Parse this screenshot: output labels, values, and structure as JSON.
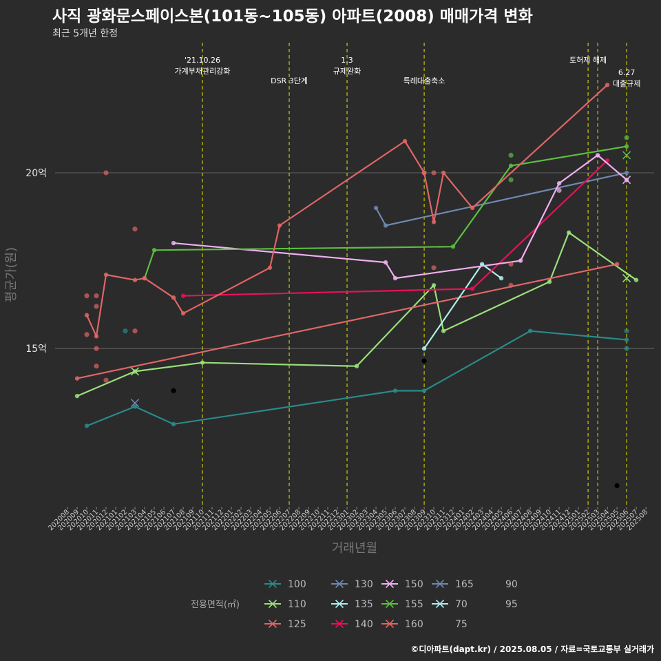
{
  "title": "사직 광화문스페이스본(101동~105동) 아파트(2008) 매매가격 변화",
  "subtitle": "최근 5개년 한정",
  "caption": "©디아파트(dapt.kr) / 2025.08.05 / 자료=국토교통부 실거래가",
  "chart_data": {
    "type": "line",
    "xlabel": "거래년월",
    "ylabel": "평균가(원)",
    "ylim": [
      10.5,
      23.7
    ],
    "yticks": [
      {
        "value": 15,
        "label": "15억"
      },
      {
        "value": 20,
        "label": "20억"
      }
    ],
    "x_start": "2020-08",
    "x_end": "2025-08",
    "grid": true,
    "background": "#2b2b2b",
    "event_lines": [
      {
        "date": "2021-10",
        "label": "'21.10.26\n가계부채관리강화",
        "color": "#e8e800"
      },
      {
        "date": "2022-07",
        "label": "DSR 3단계",
        "color": "#e8e800"
      },
      {
        "date": "2023-01",
        "label": "1.3\n규제완화",
        "color": "#e8e800"
      },
      {
        "date": "2023-09",
        "label": "특례대출축소",
        "color": "#e8e800"
      },
      {
        "date": "2025-02",
        "label": "토허제 해제",
        "color": "#e8e800"
      },
      {
        "date": "2025-03",
        "label": "",
        "color": "#e8e800"
      },
      {
        "date": "2025-06",
        "label": "6.27\n대출규제",
        "color": "#e8e800"
      }
    ],
    "series": [
      {
        "name": "100",
        "color": "#2a8a8a",
        "line": [
          [
            "2020-10",
            12.8
          ],
          [
            "2021-03",
            13.35
          ],
          [
            "2021-07",
            12.85
          ],
          [
            "2023-06",
            13.8
          ],
          [
            "2023-09",
            13.8
          ],
          [
            "2024-08",
            15.5
          ],
          [
            "2025-06",
            15.25
          ]
        ],
        "points": [
          [
            "2021-02",
            15.5
          ],
          [
            "2025-06",
            15.5
          ],
          [
            "2025-06",
            15.0
          ]
        ],
        "crosses": []
      },
      {
        "name": "110",
        "color": "#99e07a",
        "line": [
          [
            "2020-09",
            13.65
          ],
          [
            "2021-03",
            14.35
          ],
          [
            "2021-10",
            14.6
          ],
          [
            "2023-02",
            14.5
          ],
          [
            "2023-10",
            16.8
          ],
          [
            "2023-11",
            15.5
          ],
          [
            "2024-10",
            16.9
          ],
          [
            "2024-12",
            18.3
          ],
          [
            "2025-07",
            16.95
          ]
        ],
        "points": [],
        "crosses": [
          [
            "2021-03",
            14.35
          ],
          [
            "2025-06",
            17.0
          ]
        ]
      },
      {
        "name": "125",
        "color": "#e06666",
        "line": [
          [
            "2020-09",
            14.15
          ],
          [
            "2025-05",
            17.4
          ]
        ],
        "points": [
          [
            "2021-03",
            15.5
          ]
        ],
        "crosses": []
      },
      {
        "name": "130",
        "color": "#6f88b0",
        "line": [
          [
            "2023-04",
            19.0
          ],
          [
            "2023-05",
            18.5
          ],
          [
            "2025-06",
            20.0
          ]
        ],
        "points": [],
        "crosses": []
      },
      {
        "name": "135",
        "color": "#aeeeee",
        "line": [
          [
            "2023-09",
            15.0
          ],
          [
            "2024-03",
            17.4
          ],
          [
            "2024-05",
            17.0
          ]
        ],
        "points": [],
        "crosses": []
      },
      {
        "name": "140",
        "color": "#e8115a",
        "line": [
          [
            "2021-08",
            16.5
          ],
          [
            "2024-02",
            16.7
          ],
          [
            "2025-04",
            20.35
          ]
        ],
        "points": [],
        "crosses": []
      },
      {
        "name": "150",
        "color": "#f0b0f0",
        "line": [
          [
            "2021-07",
            18.0
          ],
          [
            "2023-05",
            17.45
          ],
          [
            "2023-06",
            17.0
          ],
          [
            "2024-07",
            17.5
          ],
          [
            "2024-11",
            19.7
          ],
          [
            "2025-03",
            20.5
          ],
          [
            "2025-06",
            19.8
          ]
        ],
        "points": [
          [
            "2024-11",
            19.5
          ]
        ],
        "crosses": [
          [
            "2025-06",
            19.8
          ]
        ]
      },
      {
        "name": "155",
        "color": "#5bbf3f",
        "line": [
          [
            "2021-04",
            17.0
          ],
          [
            "2021-05",
            17.8
          ],
          [
            "2023-12",
            17.9
          ],
          [
            "2024-06",
            20.2
          ],
          [
            "2025-06",
            20.75
          ]
        ],
        "points": [
          [
            "2024-06",
            20.5
          ],
          [
            "2024-06",
            19.8
          ],
          [
            "2025-06",
            21.0
          ]
        ],
        "crosses": [
          [
            "2025-06",
            20.5
          ]
        ]
      },
      {
        "name": "160",
        "color": "#e06666",
        "line": [
          [
            "2020-10",
            15.95
          ],
          [
            "2020-11",
            15.35
          ],
          [
            "2020-12",
            17.1
          ],
          [
            "2021-03",
            16.95
          ],
          [
            "2021-04",
            17.0
          ],
          [
            "2021-07",
            16.45
          ],
          [
            "2021-08",
            16.0
          ],
          [
            "2022-05",
            17.3
          ],
          [
            "2022-06",
            18.5
          ],
          [
            "2023-07",
            20.9
          ],
          [
            "2023-09",
            20.0
          ],
          [
            "2023-10",
            18.6
          ],
          [
            "2023-11",
            20.0
          ],
          [
            "2024-02",
            19.0
          ],
          [
            "2025-04",
            22.5
          ]
        ],
        "points": [
          [
            "2020-10",
            16.5
          ],
          [
            "2020-10",
            15.4
          ],
          [
            "2020-11",
            16.5
          ],
          [
            "2020-11",
            16.2
          ],
          [
            "2020-11",
            15.0
          ],
          [
            "2020-11",
            14.5
          ],
          [
            "2020-12",
            14.1
          ],
          [
            "2020-12",
            20.0
          ],
          [
            "2021-03",
            18.4
          ],
          [
            "2023-09",
            20.0
          ],
          [
            "2023-10",
            17.3
          ],
          [
            "2023-10",
            20.0
          ],
          [
            "2024-06",
            16.8
          ],
          [
            "2024-06",
            17.4
          ]
        ],
        "crosses": []
      },
      {
        "name": "165",
        "color": "#6f88b0",
        "line": [],
        "points": [],
        "crosses": [
          [
            "2021-03",
            13.45
          ]
        ]
      },
      {
        "name": "70",
        "color": "#aeeeee",
        "line": [],
        "points": [],
        "crosses": []
      },
      {
        "name": "75",
        "color": "#000000",
        "line": [],
        "points": [
          [
            "2021-07",
            13.8
          ],
          [
            "2023-09",
            14.65
          ],
          [
            "2025-05",
            11.1
          ]
        ],
        "crosses": []
      },
      {
        "name": "90",
        "color": "#000000",
        "line": [],
        "points": [],
        "crosses": []
      },
      {
        "name": "95",
        "color": "#000000",
        "line": [],
        "points": [],
        "crosses": []
      }
    ],
    "legend": {
      "title": "전용면적(㎡)",
      "placement": "bottom",
      "entries": [
        {
          "name": "100",
          "color": "#2a8a8a",
          "marker": "x"
        },
        {
          "name": "130",
          "color": "#6f88b0",
          "marker": "x"
        },
        {
          "name": "150",
          "color": "#f0b0f0",
          "marker": "x"
        },
        {
          "name": "165",
          "color": "#6f88b0",
          "marker": "x"
        },
        {
          "name": "90",
          "color": "",
          "marker": "none"
        },
        {
          "name": "110",
          "color": "#99e07a",
          "marker": "x"
        },
        {
          "name": "135",
          "color": "#aeeeee",
          "marker": "x"
        },
        {
          "name": "155",
          "color": "#5bbf3f",
          "marker": "x"
        },
        {
          "name": "70",
          "color": "#aeeeee",
          "marker": "x"
        },
        {
          "name": "95",
          "color": "",
          "marker": "none"
        },
        {
          "name": "125",
          "color": "#e06666",
          "marker": "x"
        },
        {
          "name": "140",
          "color": "#e8115a",
          "marker": "x"
        },
        {
          "name": "160",
          "color": "#e06666",
          "marker": "x"
        },
        {
          "name": "75",
          "color": "",
          "marker": "none"
        }
      ]
    }
  }
}
